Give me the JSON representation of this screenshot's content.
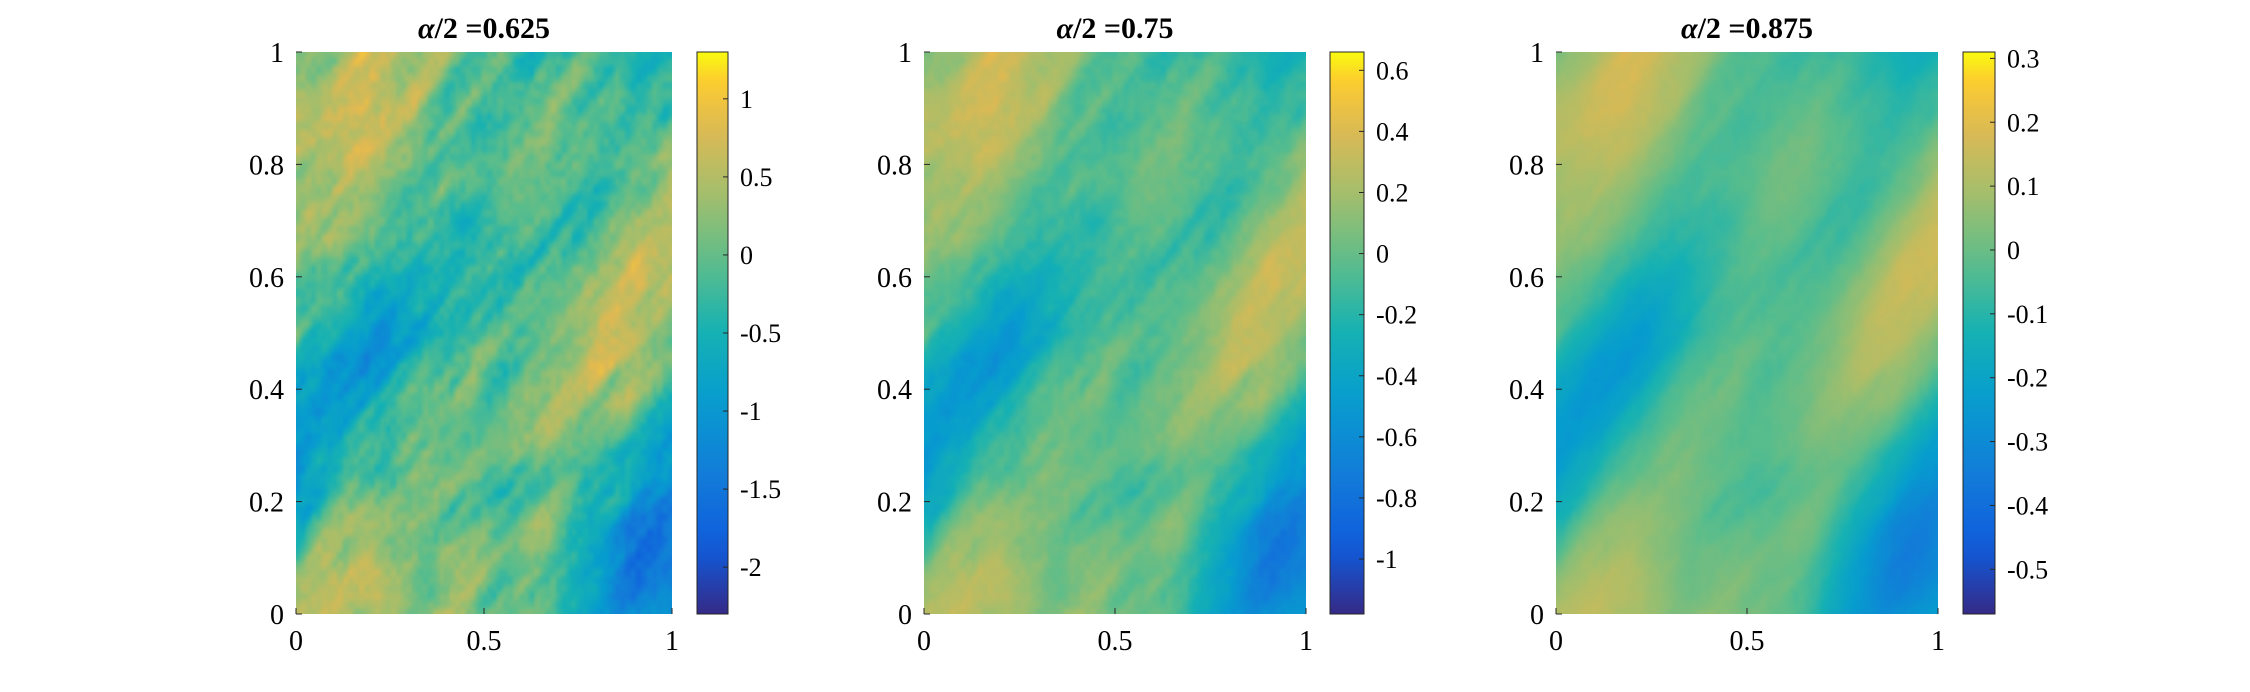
{
  "chart_data": [
    {
      "type": "heatmap",
      "title_symbol": "α",
      "title_text": "/2 =0.625",
      "xlim": [
        0,
        1
      ],
      "ylim": [
        0,
        1
      ],
      "x_ticks": [
        "0",
        "0.5",
        "1"
      ],
      "y_ticks": [
        "0",
        "0.2",
        "0.4",
        "0.6",
        "0.8",
        "1"
      ],
      "clim": [
        -2.3,
        1.3
      ],
      "colorbar_ticks": [
        {
          "value": 1,
          "label": "1"
        },
        {
          "value": 0.5,
          "label": "0.5"
        },
        {
          "value": 0,
          "label": "0"
        },
        {
          "value": -0.5,
          "label": "-0.5"
        },
        {
          "value": -1,
          "label": "-1"
        },
        {
          "value": -1.5,
          "label": "-1.5"
        },
        {
          "value": -2,
          "label": "-2"
        }
      ],
      "colormap": "parula",
      "roughness": 1.0,
      "seed": 11
    },
    {
      "type": "heatmap",
      "title_symbol": "α",
      "title_text": "/2 =0.75",
      "xlim": [
        0,
        1
      ],
      "ylim": [
        0,
        1
      ],
      "x_ticks": [
        "0",
        "0.5",
        "1"
      ],
      "y_ticks": [
        "0",
        "0.2",
        "0.4",
        "0.6",
        "0.8",
        "1"
      ],
      "clim": [
        -1.18,
        0.66
      ],
      "colorbar_ticks": [
        {
          "value": 0.6,
          "label": "0.6"
        },
        {
          "value": 0.4,
          "label": "0.4"
        },
        {
          "value": 0.2,
          "label": "0.2"
        },
        {
          "value": 0,
          "label": "0"
        },
        {
          "value": -0.2,
          "label": "-0.2"
        },
        {
          "value": -0.4,
          "label": "-0.4"
        },
        {
          "value": -0.6,
          "label": "-0.6"
        },
        {
          "value": -0.8,
          "label": "-0.8"
        },
        {
          "value": -1,
          "label": "-1"
        }
      ],
      "colormap": "parula",
      "roughness": 0.55,
      "seed": 11
    },
    {
      "type": "heatmap",
      "title_symbol": "α",
      "title_text": "/2 =0.875",
      "xlim": [
        0,
        1
      ],
      "ylim": [
        0,
        1
      ],
      "x_ticks": [
        "0",
        "0.5",
        "1"
      ],
      "y_ticks": [
        "0",
        "0.2",
        "0.4",
        "0.6",
        "0.8",
        "1"
      ],
      "clim": [
        -0.57,
        0.31
      ],
      "colorbar_ticks": [
        {
          "value": 0.3,
          "label": "0.3"
        },
        {
          "value": 0.2,
          "label": "0.2"
        },
        {
          "value": 0.1,
          "label": "0.1"
        },
        {
          "value": 0,
          "label": "0"
        },
        {
          "value": -0.1,
          "label": "-0.1"
        },
        {
          "value": -0.2,
          "label": "-0.2"
        },
        {
          "value": -0.3,
          "label": "-0.3"
        },
        {
          "value": -0.4,
          "label": "-0.4"
        },
        {
          "value": -0.5,
          "label": "-0.5"
        }
      ],
      "colormap": "parula",
      "roughness": 0.25,
      "seed": 11
    }
  ]
}
